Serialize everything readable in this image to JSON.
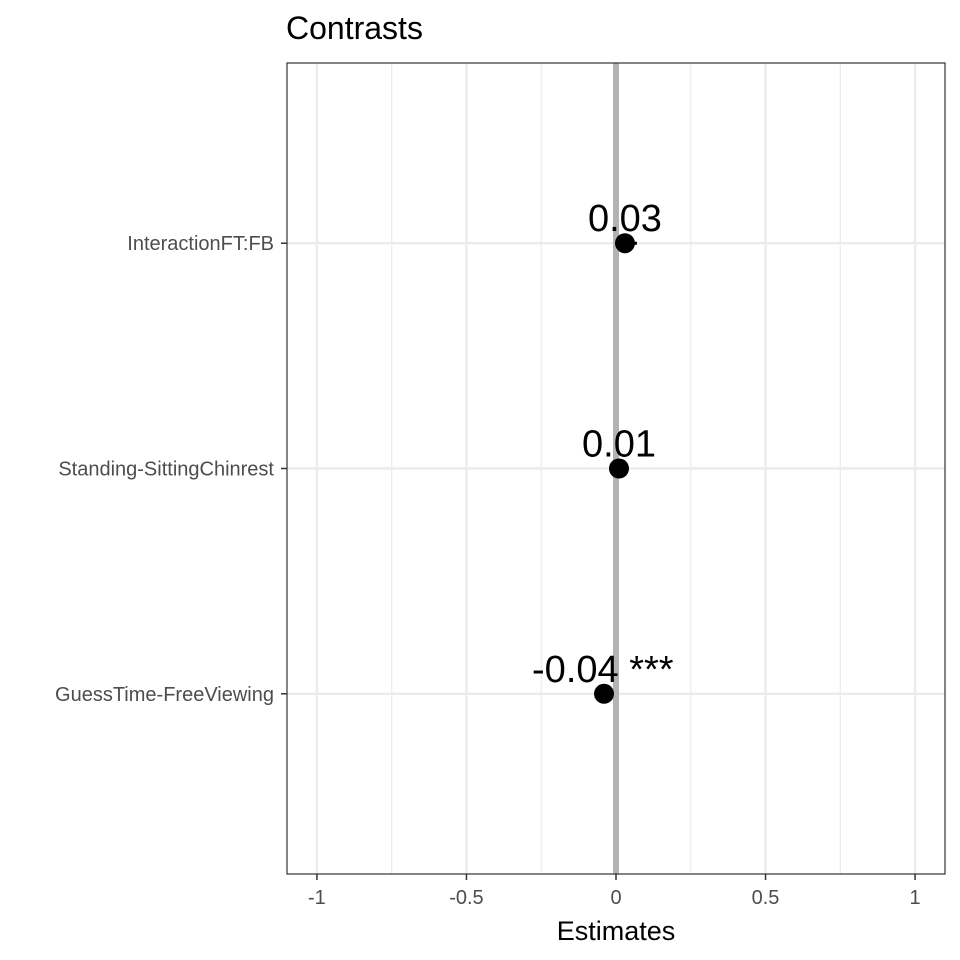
{
  "chart_data": {
    "type": "scatter",
    "title": "Contrasts",
    "xlabel": "Estimates",
    "ylabel": "",
    "xlim": [
      -1.1,
      1.1
    ],
    "x_ticks": [
      -1,
      -0.5,
      0,
      0.5,
      1
    ],
    "x_tick_labels": [
      "-1",
      "-0.5",
      "0",
      "0.5",
      "1"
    ],
    "grid": true,
    "reference_line": 0,
    "categories": [
      "InteractionFT:FB",
      "Standing-SittingChinrest",
      "GuessTime-FreeViewing"
    ],
    "values": [
      0.03,
      0.01,
      -0.04
    ],
    "ci_low": [
      0.0,
      0.005,
      -0.045
    ],
    "ci_high": [
      0.07,
      0.015,
      -0.035
    ],
    "point_labels": [
      "0.03",
      "0.01",
      "-0.04 ***"
    ],
    "colors": {
      "point": "#000000",
      "reference_line": "#b3b3b3",
      "grid": "#ebebeb",
      "panel_border": "#333333"
    }
  }
}
